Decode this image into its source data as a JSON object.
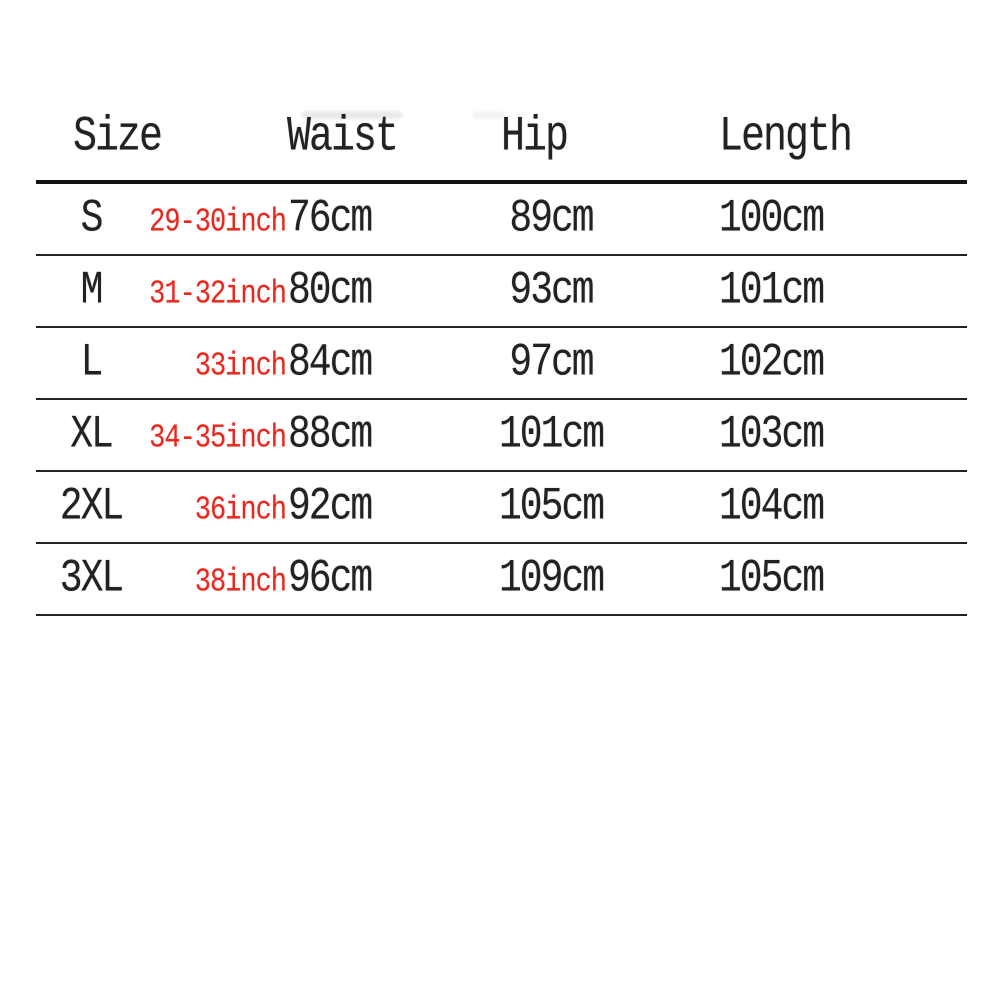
{
  "chart_data": {
    "type": "table",
    "title": "",
    "columns": [
      "Size",
      "Waist",
      "Hip",
      "Length"
    ],
    "rows": [
      {
        "size": "S",
        "waist_inch": "29-30inch",
        "waist_cm": "76cm",
        "hip": "89cm",
        "length": "100cm"
      },
      {
        "size": "M",
        "waist_inch": "31-32inch",
        "waist_cm": "80cm",
        "hip": "93cm",
        "length": "101cm"
      },
      {
        "size": "L",
        "waist_inch": "33inch",
        "waist_cm": "84cm",
        "hip": "97cm",
        "length": "102cm"
      },
      {
        "size": "XL",
        "waist_inch": "34-35inch",
        "waist_cm": "88cm",
        "hip": "101cm",
        "length": "103cm"
      },
      {
        "size": "2XL",
        "waist_inch": "36inch",
        "waist_cm": "92cm",
        "hip": "105cm",
        "length": "104cm"
      },
      {
        "size": "3XL",
        "waist_inch": "38inch",
        "waist_cm": "96cm",
        "hip": "109cm",
        "length": "105cm"
      }
    ],
    "layout": {
      "grid": "horizontal-rules-only",
      "header_rule_thicker": true
    },
    "colors": {
      "background": "#ffffff",
      "text": "#222222",
      "inch_text": "#e8281e",
      "rule": "#242424"
    }
  }
}
